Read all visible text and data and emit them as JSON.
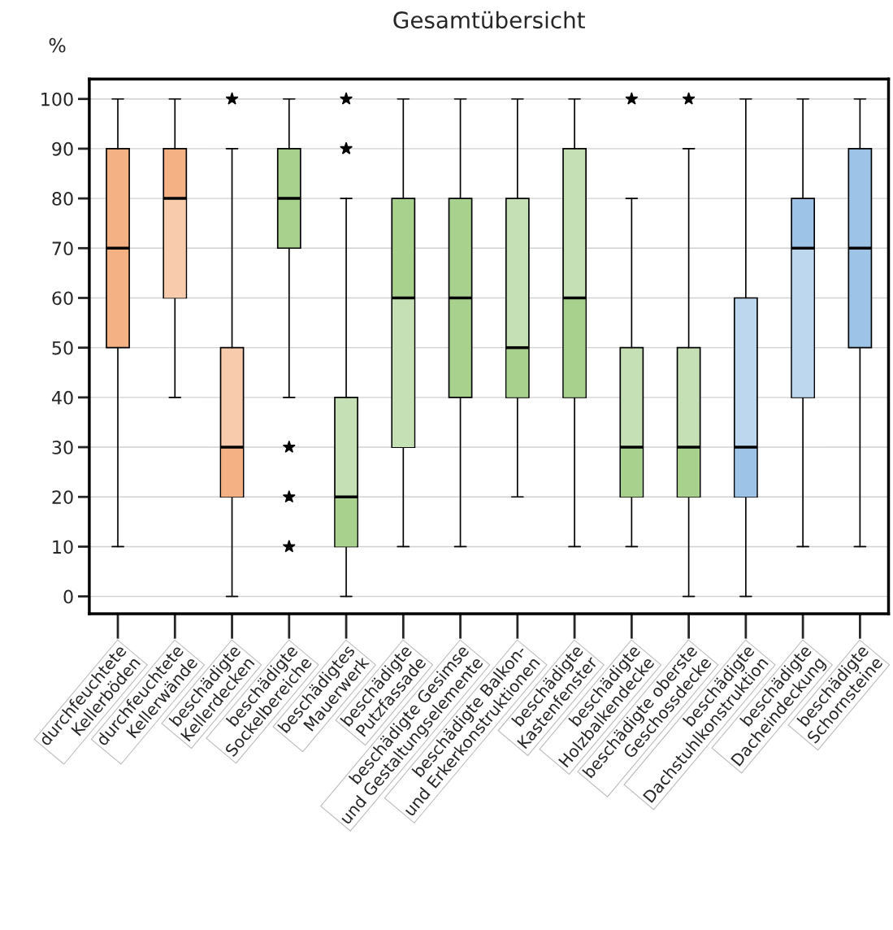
{
  "chart_data": {
    "type": "box",
    "title": "Gesamtübersicht",
    "ylabel": "%",
    "categories": [
      "durchfeuchtete\nKellerböden",
      "durchfeuchtete\nKellerwände",
      "beschädigte\nKellerdecken",
      "beschädigte\nSockelbereiche",
      "beschädigtes\nMauerwerk",
      "beschädigte\nPutzfassade",
      "beschädigte Gesimse\nund Gestaltungselemente",
      "beschädigte Balkon-\nund Erkerkonstruktionen",
      "beschädigte\nKastenfenster",
      "beschädigte\nHolzbalkendecke",
      "beschädigte oberste\nGeschossdecke",
      "beschädigte\nDachstuhlkonstruktion",
      "beschädigte\nDacheindeckung",
      "beschädigte\nSchornsteine"
    ],
    "boxes": [
      {
        "low": 10,
        "q1": 50,
        "median": 70,
        "q3": 90,
        "high": 100
      },
      {
        "low": 40,
        "q1": 60,
        "median": 80,
        "q3": 90,
        "high": 100
      },
      {
        "low": 0,
        "q1": 20,
        "median": 30,
        "q3": 50,
        "high": 90,
        "outliers": [
          100
        ]
      },
      {
        "low": 40,
        "q1": 70,
        "median": 80,
        "q3": 90,
        "high": 100,
        "outliers": [
          10,
          20,
          30
        ]
      },
      {
        "low": 0,
        "q1": 10,
        "median": 20,
        "q3": 40,
        "high": 80,
        "outliers": [
          90,
          100
        ]
      },
      {
        "low": 10,
        "q1": 30,
        "median": 60,
        "q3": 80,
        "high": 100
      },
      {
        "low": 10,
        "q1": 40,
        "median": 60,
        "q3": 80,
        "high": 100
      },
      {
        "low": 20,
        "q1": 40,
        "median": 50,
        "q3": 80,
        "high": 100
      },
      {
        "low": 10,
        "q1": 40,
        "median": 60,
        "q3": 90,
        "high": 100
      },
      {
        "low": 10,
        "q1": 20,
        "median": 30,
        "q3": 50,
        "high": 80,
        "outliers": [
          100
        ]
      },
      {
        "low": 0,
        "q1": 20,
        "median": 30,
        "q3": 50,
        "high": 90,
        "outliers": [
          100
        ]
      },
      {
        "low": 0,
        "q1": 20,
        "median": 30,
        "q3": 60,
        "high": 100
      },
      {
        "low": 10,
        "q1": 40,
        "median": 70,
        "q3": 80,
        "high": 100
      },
      {
        "low": 10,
        "q1": 50,
        "median": 70,
        "q3": 90,
        "high": 100
      }
    ],
    "colors": [
      [
        "#f4b183",
        "#f4b183"
      ],
      [
        "#f8cbad",
        "#f4b183"
      ],
      [
        "#f4b183",
        "#f8cbad"
      ],
      [
        "#a9d18e",
        "#a9d18e"
      ],
      [
        "#a9d18e",
        "#c5e0b4"
      ],
      [
        "#c5e0b4",
        "#a9d18e"
      ],
      [
        "#a9d18e",
        "#a9d18e"
      ],
      [
        "#a9d18e",
        "#c5e0b4"
      ],
      [
        "#a9d18e",
        "#c5e0b4"
      ],
      [
        "#a9d18e",
        "#c5e0b4"
      ],
      [
        "#a9d18e",
        "#c5e0b4"
      ],
      [
        "#9dc3e6",
        "#bdd7ee"
      ],
      [
        "#bdd7ee",
        "#9dc3e6"
      ],
      [
        "#9dc3e6",
        "#9dc3e6"
      ]
    ],
    "ylim": [
      -3.5,
      104
    ],
    "yticks": [
      0,
      10,
      20,
      30,
      40,
      50,
      60,
      70,
      80,
      90,
      100
    ],
    "grid": "y",
    "marker": "star"
  }
}
